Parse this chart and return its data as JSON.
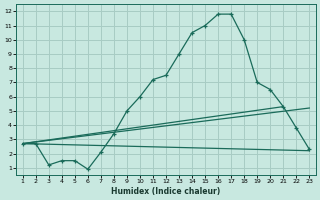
{
  "xlabel": "Humidex (Indice chaleur)",
  "bg_color": "#c8e8e0",
  "grid_color": "#a8ccc4",
  "line_color": "#1a6b5a",
  "xlim": [
    0.5,
    23.5
  ],
  "ylim": [
    0.5,
    12.5
  ],
  "xticks": [
    1,
    2,
    3,
    4,
    5,
    6,
    7,
    8,
    9,
    10,
    11,
    12,
    13,
    14,
    15,
    16,
    17,
    18,
    19,
    20,
    21,
    22,
    23
  ],
  "yticks": [
    1,
    2,
    3,
    4,
    5,
    6,
    7,
    8,
    9,
    10,
    11,
    12
  ],
  "curve1_x": [
    1,
    2,
    3,
    4,
    5,
    6,
    7,
    8,
    9,
    10,
    11,
    12,
    13,
    14,
    15,
    16,
    17,
    18,
    19,
    20,
    21,
    22,
    23
  ],
  "curve1_y": [
    2.7,
    2.7,
    1.2,
    1.5,
    1.5,
    0.9,
    2.1,
    3.4,
    5.0,
    6.0,
    7.2,
    7.5,
    9.0,
    10.5,
    11.0,
    11.8,
    11.8,
    10.0,
    7.0,
    6.5,
    5.3,
    3.8,
    2.3
  ],
  "line1_x": [
    1,
    23
  ],
  "line1_y": [
    2.7,
    2.2
  ],
  "line2_x": [
    1,
    21
  ],
  "line2_y": [
    2.7,
    5.3
  ],
  "line3_x": [
    1,
    23
  ],
  "line3_y": [
    2.7,
    5.2
  ]
}
